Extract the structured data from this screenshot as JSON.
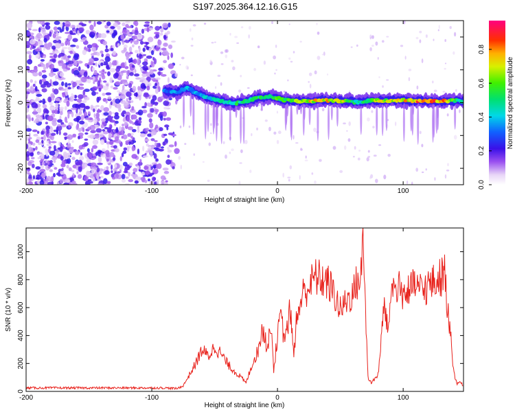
{
  "title": "S197.2025.364.12.16.G15",
  "chart_data": [
    {
      "type": "heatmap",
      "xlabel": "Height of straight line (km)",
      "ylabel": "Frequency (Hz)",
      "xlim": [
        -200,
        148
      ],
      "ylim": [
        -25,
        25
      ],
      "x_ticks": [
        "-200",
        "-100",
        "0",
        "100"
      ],
      "y_ticks": [
        "-20",
        "-10",
        "0",
        "10",
        "20"
      ],
      "colorbar": {
        "label": "Normalized spectral amplitude",
        "range": [
          0,
          0.97
        ],
        "ticks": [
          "0.0",
          "0.2",
          "0.4",
          "0.6",
          "0.8"
        ]
      },
      "ridge": {
        "x": [
          -90,
          -80,
          -72,
          -65,
          -55,
          -45,
          -35,
          -25,
          -15,
          -5,
          5,
          15,
          25,
          35,
          45,
          55,
          65,
          75,
          85,
          95,
          105,
          115,
          125,
          135,
          145
        ],
        "frequency": [
          3.5,
          3.2,
          4.5,
          3.0,
          1.5,
          0.5,
          -0.3,
          0.5,
          1.5,
          1.8,
          0.8,
          0.5,
          0.3,
          0.8,
          0.6,
          0.5,
          0.1,
          0.8,
          0.6,
          0.8,
          0.5,
          0.6,
          0.4,
          0.5,
          0.6
        ],
        "amplitude": [
          0.35,
          0.4,
          0.45,
          0.4,
          0.45,
          0.5,
          0.55,
          0.55,
          0.6,
          0.6,
          0.65,
          0.75,
          0.8,
          0.8,
          0.82,
          0.7,
          0.5,
          0.7,
          0.75,
          0.8,
          0.85,
          0.9,
          0.92,
          0.8,
          0.5
        ]
      },
      "noise_region_x": [
        -200,
        -80
      ]
    },
    {
      "type": "line",
      "xlabel": "Height of straight line (km)",
      "ylabel": "SNR (10 * v/v)",
      "xlim": [
        -200,
        148
      ],
      "ylim": [
        0,
        1170
      ],
      "x_ticks": [
        "-200",
        "-100",
        "0",
        "100"
      ],
      "y_ticks": [
        "0",
        "200",
        "400",
        "600",
        "800",
        "1000"
      ],
      "color": "#e8201a",
      "series": [
        {
          "x": [
            -200,
            -180,
            -160,
            -140,
            -120,
            -100,
            -90,
            -80,
            -75,
            -70,
            -65,
            -60,
            -55,
            -50,
            -45,
            -40,
            -35,
            -30,
            -25,
            -20,
            -15,
            -12,
            -10,
            -8,
            -5,
            -3,
            0,
            3,
            5,
            8,
            10,
            13,
            15,
            18,
            20,
            25,
            30,
            35,
            40,
            45,
            50,
            55,
            60,
            63,
            65,
            67,
            68,
            70,
            72,
            75,
            80,
            82,
            85,
            88,
            90,
            95,
            100,
            105,
            110,
            115,
            120,
            125,
            130,
            133,
            135,
            138,
            140,
            143,
            145,
            148
          ],
          "y": [
            25,
            25,
            25,
            25,
            25,
            25,
            25,
            20,
            40,
            120,
            200,
            300,
            250,
            320,
            270,
            200,
            150,
            110,
            60,
            200,
            300,
            450,
            380,
            300,
            500,
            150,
            400,
            550,
            380,
            450,
            600,
            250,
            500,
            620,
            700,
            750,
            820,
            800,
            780,
            700,
            580,
            650,
            700,
            780,
            800,
            850,
            1150,
            600,
            100,
            60,
            120,
            300,
            650,
            400,
            720,
            760,
            700,
            720,
            760,
            720,
            760,
            780,
            820,
            850,
            620,
            400,
            150,
            50,
            70,
            40
          ]
        }
      ]
    }
  ]
}
